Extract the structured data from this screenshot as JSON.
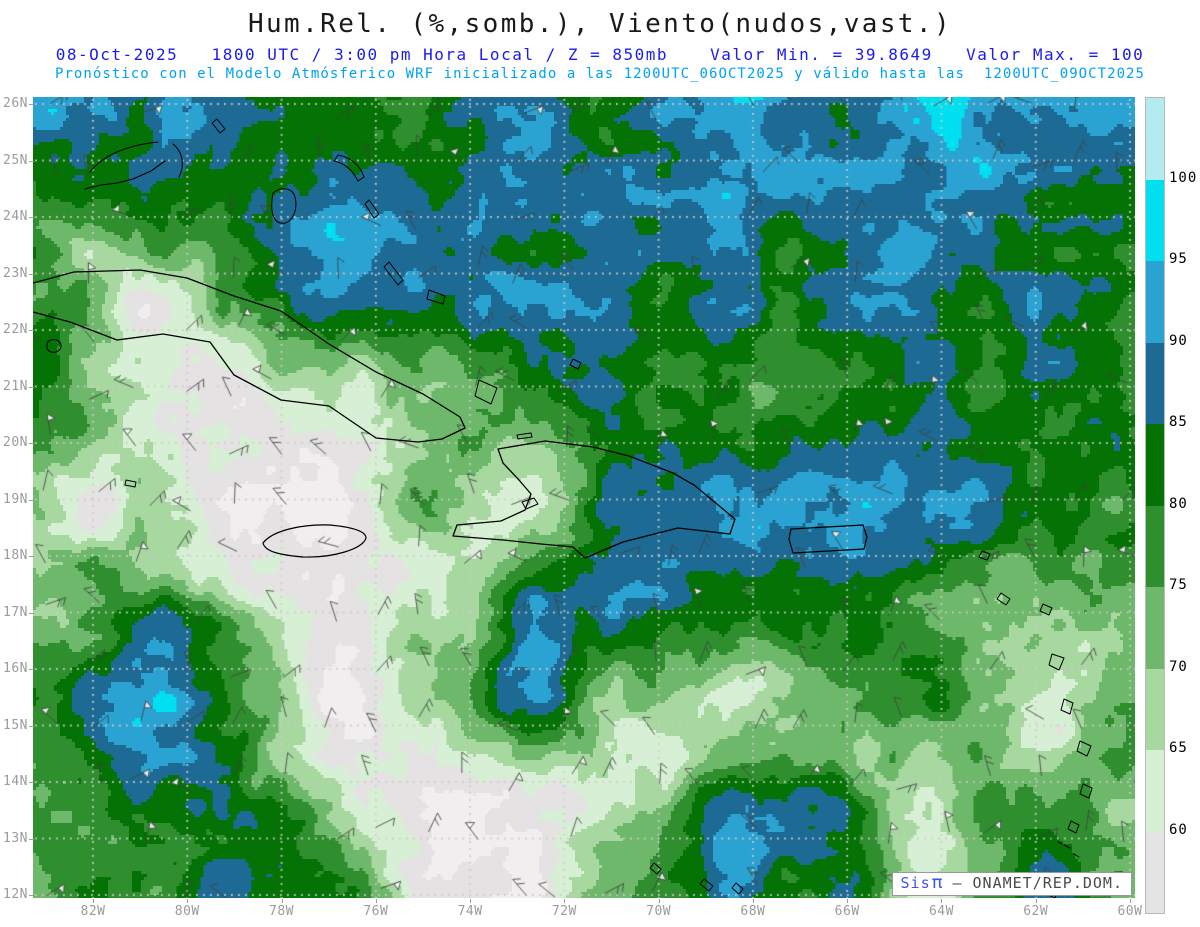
{
  "header": {
    "title": "Hum.Rel. (%,somb.), Viento(nudos,vast.)",
    "title_color": "#1a1a1a",
    "datetime_level": "08-Oct-2025   1800 UTC / 3:00 pm Hora Local / Z = 850mb",
    "minmax": "Valor Min. = 39.8649   Valor Max. = 100",
    "line2_color": "#1b1bf0",
    "forecast": "Pronóstico con el Modelo Atmósferico WRF inicializado a las 1200UTC_06OCT2025 y válido hasta las  1200UTC_09OCT2025",
    "forecast_color": "#00a2f2"
  },
  "map": {
    "lat_labels": [
      "26N",
      "25N",
      "24N",
      "23N",
      "22N",
      "21N",
      "20N",
      "19N",
      "18N",
      "17N",
      "16N",
      "15N",
      "14N",
      "13N",
      "12N"
    ],
    "lon_labels": [
      "82W",
      "80W",
      "78W",
      "76W",
      "74W",
      "72W",
      "70W",
      "68W",
      "66W",
      "64W",
      "62W",
      "60W"
    ],
    "axis_label_color": "#9b9b9b",
    "gridline_color": "#d2c9c9",
    "coastline_color": "#000000",
    "wind_barb_color": "#3f433f"
  },
  "colorbar": {
    "tick_labels": [
      "100",
      "95",
      "90",
      "85",
      "80",
      "75",
      "70",
      "65",
      "60"
    ],
    "segment_colors_top_to_bottom": [
      "#b2ecf0",
      "#00dff0",
      "#2aa2d2",
      "#1d6b95",
      "#047204",
      "#2f8f2f",
      "#6db86a",
      "#a6d8a0",
      "#d7f0d5",
      "#e4e4e4"
    ],
    "label_color": "#000000"
  },
  "field_render": {
    "levels": [
      55,
      60,
      65,
      70,
      75,
      80,
      85,
      90,
      95
    ],
    "colors": [
      "#f0eeee",
      "#e4e2e2",
      "#d7f0d5",
      "#a6d8a0",
      "#6db86a",
      "#2f8f2f",
      "#047204",
      "#1d6b95",
      "#2aa2d2",
      "#00dff0"
    ],
    "bias_grid": [
      [
        86,
        82,
        84,
        88,
        83,
        87,
        95,
        93,
        85,
        95,
        96,
        97
      ],
      [
        80,
        83,
        87,
        90,
        82,
        88,
        94,
        95,
        90,
        93,
        86,
        82
      ],
      [
        72,
        66,
        75,
        84,
        78,
        82,
        88,
        92,
        93,
        88,
        90,
        80
      ],
      [
        76,
        64,
        62,
        78,
        76,
        80,
        78,
        85,
        90,
        91,
        86,
        82
      ],
      [
        68,
        62,
        56,
        63,
        80,
        66,
        80,
        82,
        85,
        90,
        86,
        88
      ],
      [
        74,
        78,
        62,
        64,
        72,
        88,
        86,
        76,
        74,
        68,
        80,
        82
      ],
      [
        82,
        85,
        75,
        63,
        66,
        84,
        72,
        64,
        74,
        82,
        76,
        80
      ],
      [
        78,
        86,
        80,
        70,
        56,
        58,
        62,
        80,
        85,
        75,
        78,
        76
      ],
      [
        75,
        82,
        88,
        78,
        60,
        58,
        70,
        84,
        82,
        76,
        84,
        78
      ]
    ],
    "octaves": [
      [
        150,
        11
      ],
      [
        64,
        6
      ],
      [
        28,
        3.5
      ],
      [
        12,
        2
      ]
    ],
    "seed": 1234
  },
  "watermark": {
    "brand": "Sis",
    "pi": "π",
    "rest": "– ONAMET/REP.DOM.",
    "brand_color": "#3d55ee",
    "text_color": "#4a4a4a"
  }
}
